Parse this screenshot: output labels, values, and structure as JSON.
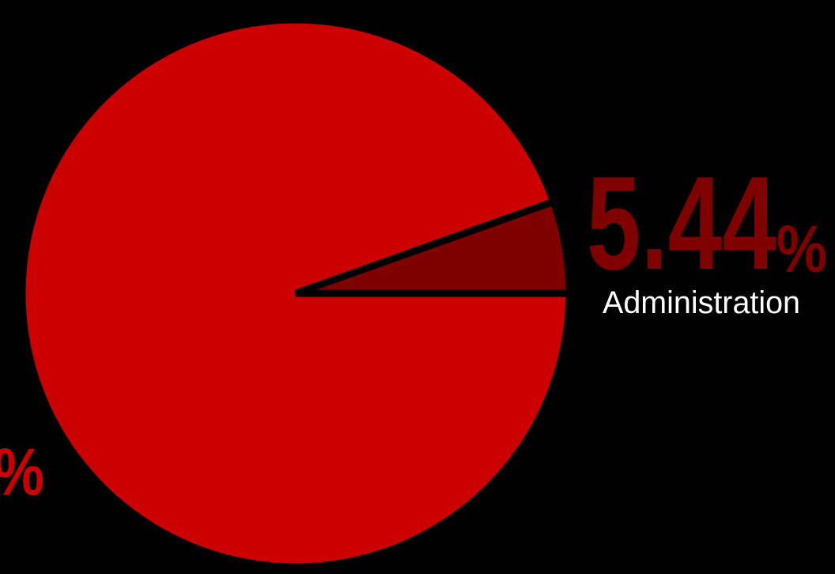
{
  "chart_data": {
    "type": "pie",
    "slices": [
      {
        "label": "Administration",
        "value": 5.44,
        "value_label": "5.44",
        "pct_sign": "%",
        "color": "#800000"
      },
      {
        "label": "",
        "value": 94.56,
        "value_label": "",
        "pct_sign": "%",
        "color": "#CC0000"
      }
    ],
    "start_angle_deg": 0,
    "direction": "counterclockwise",
    "legend": "none"
  },
  "colors": {
    "background": "#000000",
    "separator": "#000000",
    "label_text": "#FFFFFF"
  }
}
